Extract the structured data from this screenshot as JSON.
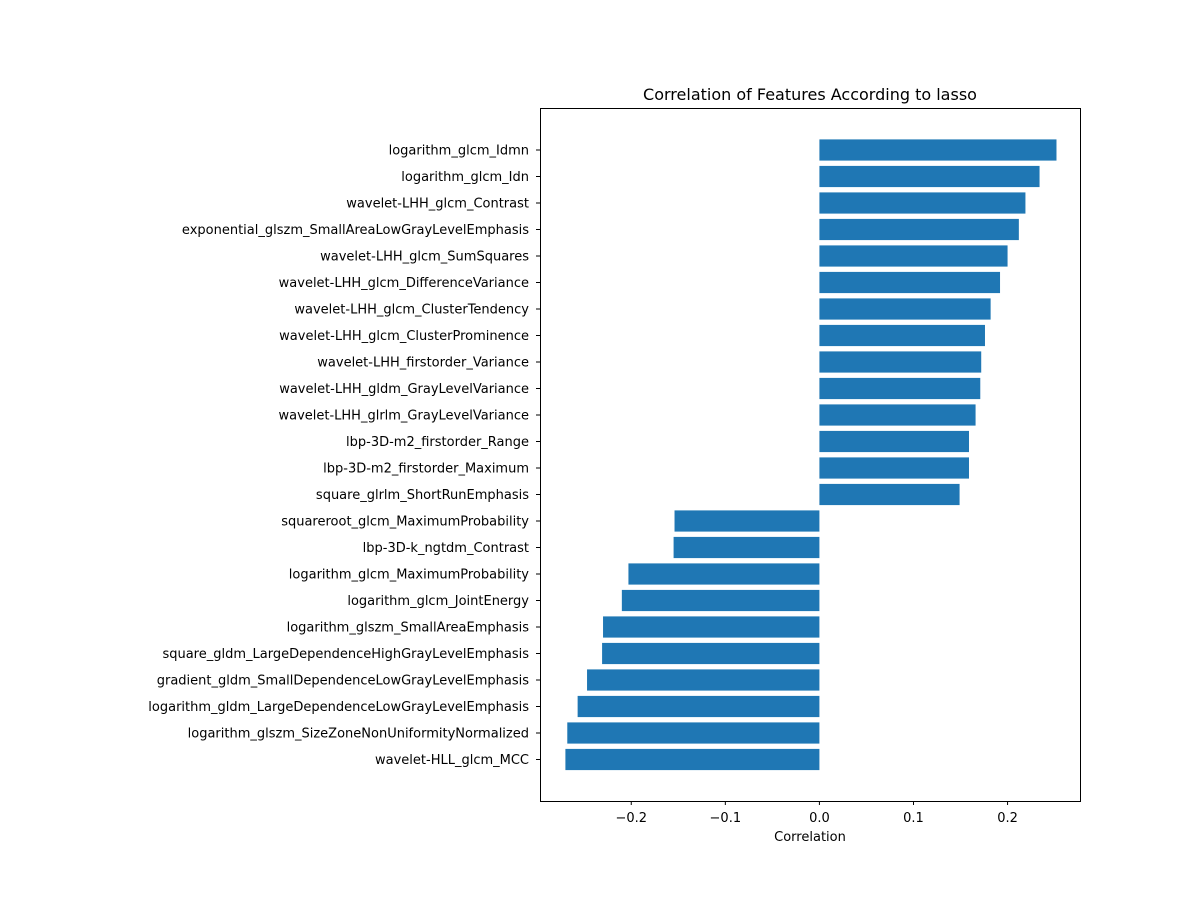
{
  "chart_data": {
    "type": "bar",
    "orientation": "horizontal",
    "title": "Correlation of Features According to lasso",
    "xlabel": "Correlation",
    "ylabel": "",
    "xlim": [
      -0.297,
      0.277
    ],
    "xticks": [
      -0.2,
      -0.1,
      0.0,
      0.1,
      0.2
    ],
    "xtick_labels": [
      "−0.2",
      "−0.1",
      "0.0",
      "0.1",
      "0.2"
    ],
    "grid": false,
    "legend": "none",
    "bar_color": "#1f77b4",
    "categories": [
      "logarithm_glcm_Idmn",
      "logarithm_glcm_Idn",
      "wavelet-LHH_glcm_Contrast",
      "exponential_glszm_SmallAreaLowGrayLevelEmphasis",
      "wavelet-LHH_glcm_SumSquares",
      "wavelet-LHH_glcm_DifferenceVariance",
      "wavelet-LHH_glcm_ClusterTendency",
      "wavelet-LHH_glcm_ClusterProminence",
      "wavelet-LHH_firstorder_Variance",
      "wavelet-LHH_gldm_GrayLevelVariance",
      "wavelet-LHH_glrlm_GrayLevelVariance",
      "lbp-3D-m2_firstorder_Range",
      "lbp-3D-m2_firstorder_Maximum",
      "square_glrlm_ShortRunEmphasis",
      "squareroot_glcm_MaximumProbability",
      "lbp-3D-k_ngtdm_Contrast",
      "logarithm_glcm_MaximumProbability",
      "logarithm_glcm_JointEnergy",
      "logarithm_glszm_SmallAreaEmphasis",
      "square_gldm_LargeDependenceHighGrayLevelEmphasis",
      "gradient_gldm_SmallDependenceLowGrayLevelEmphasis",
      "logarithm_gldm_LargeDependenceLowGrayLevelEmphasis",
      "logarithm_glszm_SizeZoneNonUniformityNormalized",
      "wavelet-HLL_glcm_MCC"
    ],
    "values": [
      0.252,
      0.234,
      0.219,
      0.212,
      0.2,
      0.192,
      0.182,
      0.176,
      0.172,
      0.171,
      0.166,
      0.159,
      0.159,
      0.149,
      -0.154,
      -0.155,
      -0.203,
      -0.21,
      -0.23,
      -0.231,
      -0.247,
      -0.257,
      -0.268,
      -0.27
    ]
  }
}
